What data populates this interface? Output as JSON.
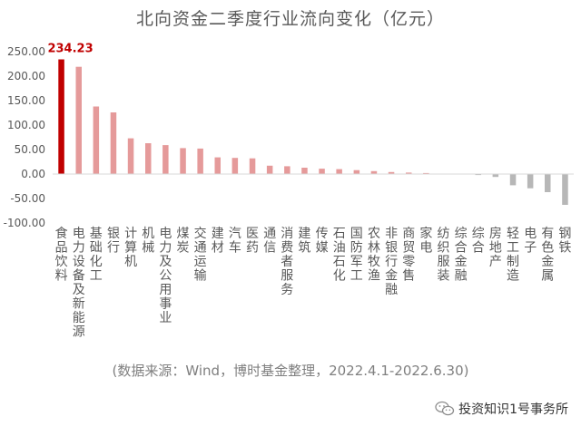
{
  "chart_data": {
    "type": "bar",
    "title": "北向资金二季度行业流向变化（亿元）",
    "xlabel": "",
    "ylabel": "",
    "ylim": [
      -100,
      250
    ],
    "y_ticks": [
      "250.00",
      "200.00",
      "150.00",
      "100.00",
      "50.00",
      "0.00",
      "-50.00",
      "-100.00"
    ],
    "y_tick_values": [
      250,
      200,
      150,
      100,
      50,
      0,
      -50,
      -100
    ],
    "grid": false,
    "highlight_label": "234.23",
    "categories": [
      "食品饮料",
      "电力设备及新能源",
      "基础化工",
      "银行",
      "计算机",
      "机械",
      "电力及公用事业",
      "煤炭",
      "交通运输",
      "建材",
      "汽车",
      "医药",
      "通信",
      "消费者服务",
      "建筑",
      "传媒",
      "石油石化",
      "国防军工",
      "农林牧渔",
      "非银行金融",
      "商贸零售",
      "家电",
      "纺织服装",
      "综合金融",
      "综合",
      "房地产",
      "轻工制造",
      "电子",
      "有色金属",
      "钢铁"
    ],
    "values": [
      234.23,
      219,
      138,
      126,
      73,
      63,
      59,
      53,
      52,
      34,
      33,
      32,
      17,
      16,
      13,
      11,
      10,
      8,
      6,
      4,
      3,
      2,
      1,
      1,
      -2,
      -6,
      -23,
      -29,
      -37,
      -63
    ],
    "colors": {
      "highlight": "#c00000",
      "bar": "#e59a9a",
      "negative": "#b7b7b7",
      "axis_text": "#595959"
    }
  },
  "source_note": "(数据来源：Wind，博时基金整理，2022.4.1-2022.6.30)",
  "watermark": {
    "icon": "wechat-icon",
    "text": "投资知识1号事务所"
  }
}
